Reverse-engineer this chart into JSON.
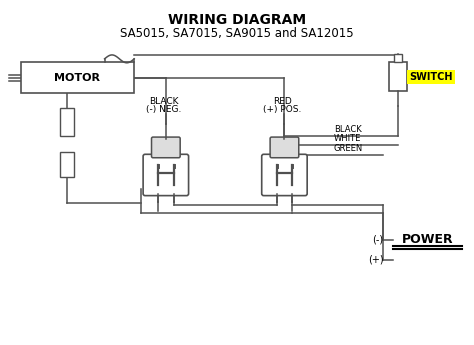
{
  "title": "WIRING DIAGRAM",
  "subtitle": "SA5015, SA7015, SA9015 and SA12015",
  "bg_color": "#ffffff",
  "line_color": "#505050",
  "title_fontsize": 10,
  "subtitle_fontsize": 8.5,
  "switch_bg": "#ffff00",
  "switch_text": "SWITCH",
  "motor_text": "MOTOR",
  "power_text": "POWER",
  "lw": 1.1
}
